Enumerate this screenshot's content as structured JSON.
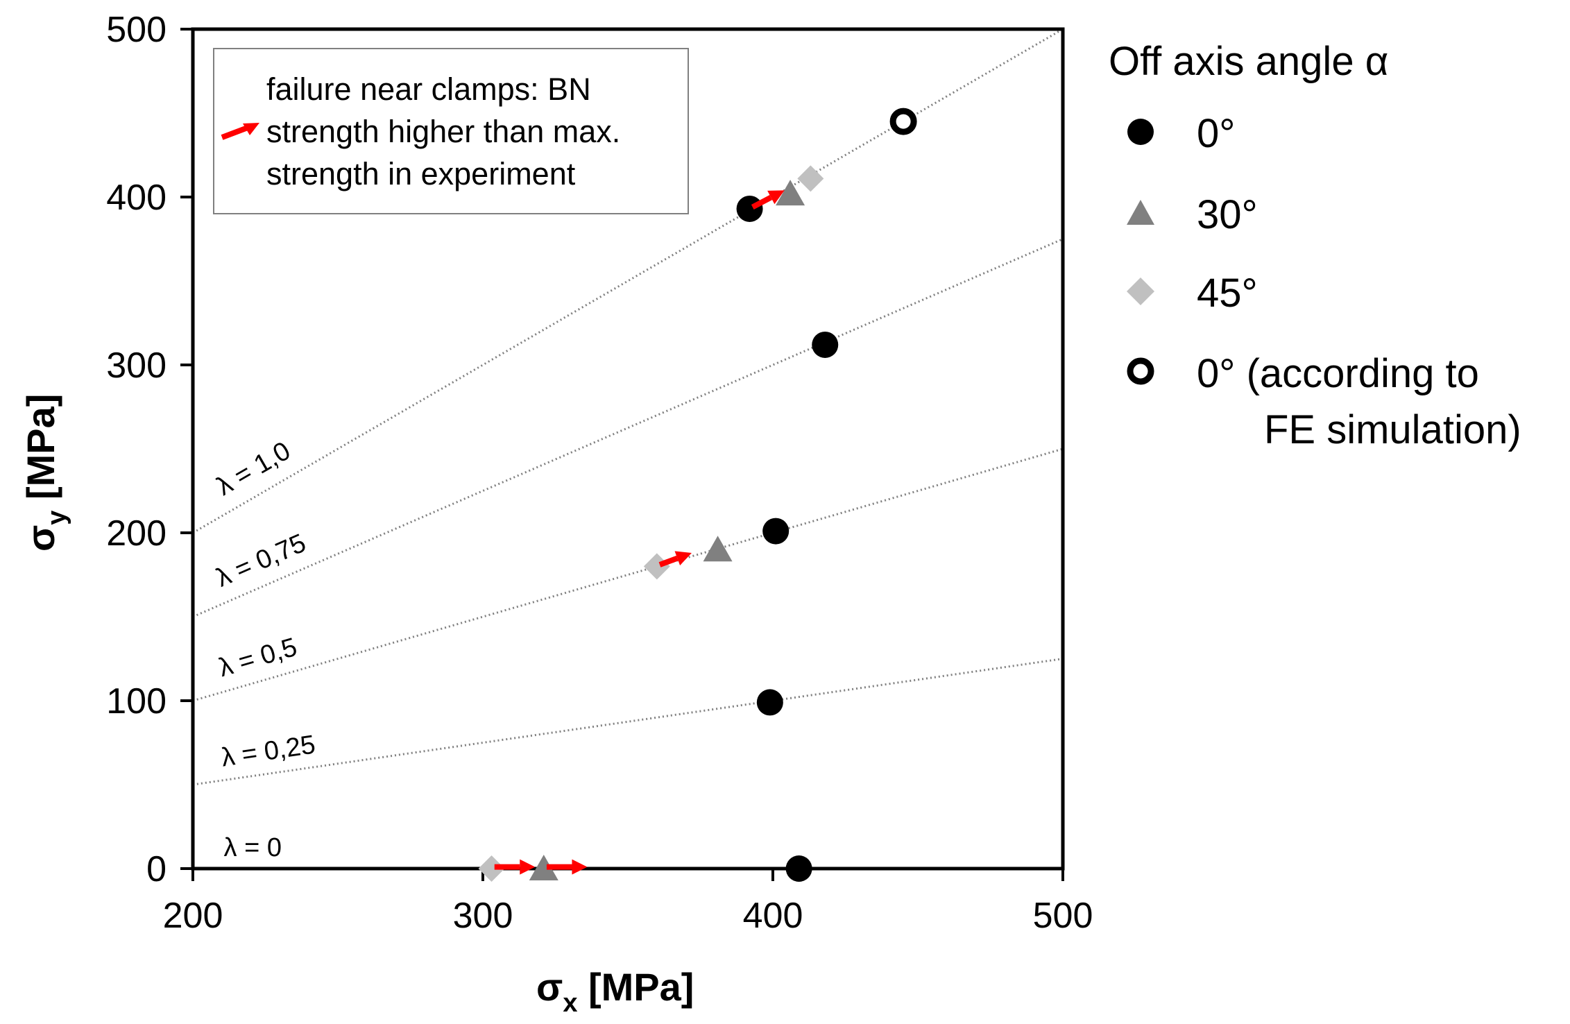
{
  "chart_data": {
    "type": "scatter",
    "xlabel_main": "σ",
    "xlabel_sub": "x",
    "xlabel_unit": " [MPa]",
    "ylabel_main": "σ",
    "ylabel_sub": "y",
    "ylabel_unit": " [MPa]",
    "xlim": [
      200,
      500
    ],
    "ylim": [
      0,
      500
    ],
    "x_ticks": [
      200,
      300,
      400,
      500
    ],
    "y_ticks": [
      0,
      100,
      200,
      300,
      400,
      500
    ],
    "load_ratio_lines": [
      {
        "lambda": 1.0,
        "label": "λ = 1,0",
        "label_at_x": 215
      },
      {
        "lambda": 0.75,
        "label": "λ = 0,75",
        "label_at_x": 214
      },
      {
        "lambda": 0.5,
        "label": "λ = 0,5",
        "label_at_x": 214
      },
      {
        "lambda": 0.25,
        "label": "λ = 0,25",
        "label_at_x": 214
      },
      {
        "lambda": 0.0,
        "label": "λ = 0",
        "label_at_x": 214
      }
    ],
    "series": [
      {
        "name": "0°",
        "marker": "circle",
        "color": "#000000",
        "points": [
          [
            392,
            393
          ],
          [
            418,
            312
          ],
          [
            401,
            201
          ],
          [
            399,
            99
          ],
          [
            409,
            0
          ]
        ]
      },
      {
        "name": "30°",
        "marker": "triangle",
        "color": "#808080",
        "points": [
          [
            406,
            402
          ],
          [
            381,
            190
          ],
          [
            321,
            0
          ]
        ]
      },
      {
        "name": "45°",
        "marker": "diamond",
        "color": "#c0c0c0",
        "points": [
          [
            413,
            411
          ],
          [
            360,
            180
          ],
          [
            303,
            0
          ]
        ]
      },
      {
        "name": "0° (according to FE simulation)",
        "marker": "ring",
        "color": "#000000",
        "points": [
          [
            445,
            445
          ]
        ]
      }
    ],
    "failure_arrows": [
      {
        "from": [
          393,
          394
        ],
        "to": [
          404,
          404
        ]
      },
      {
        "from": [
          361,
          181
        ],
        "to": [
          372,
          188
        ]
      },
      {
        "from": [
          304,
          1
        ],
        "to": [
          318,
          1
        ]
      },
      {
        "from": [
          322,
          1
        ],
        "to": [
          336,
          1
        ]
      }
    ],
    "annotation": {
      "lines": [
        "failure near clamps: BN",
        "strength higher than max.",
        "strength in experiment"
      ],
      "arrow_color": "#ff0000"
    },
    "legend": {
      "title": "Off axis angle α",
      "entries": [
        "0°",
        "30°",
        "45°",
        "0° (according to",
        "FE simulation)"
      ],
      "placement": "right"
    },
    "colors": {
      "circle": "#000000",
      "triangle": "#808080",
      "diamond": "#c0c0c0",
      "guide_line": "#808080",
      "arrow": "#ff0000"
    }
  }
}
